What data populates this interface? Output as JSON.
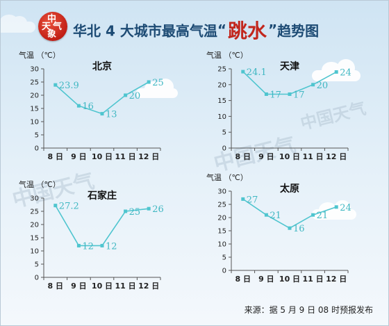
{
  "title": {
    "main": "华北 4 大城市最高气温",
    "quote_open": "“",
    "highlight": "跳水",
    "quote_close": "”",
    "suffix": "趋势图"
  },
  "logo": {
    "chars": [
      "中",
      "天",
      "气",
      "象"
    ],
    "color": "#c2271d"
  },
  "watermark": "中国天气",
  "source": "来源：据 5 月 9 日 08 时预报发布",
  "colors": {
    "line": "#4fc5cf",
    "title": "#1d4b74",
    "highlight": "#c2271d",
    "label": "#3fb7c2"
  },
  "chart_data": [
    {
      "type": "line",
      "title": "北京",
      "ylabel": "气温 （℃）",
      "categories": [
        "8 日",
        "9 日",
        "10 日",
        "11 日",
        "12 日"
      ],
      "values": [
        23.9,
        16,
        13,
        20,
        25
      ],
      "value_labels": [
        "23.9",
        "16",
        "13",
        "20",
        "25"
      ],
      "ylim": [
        0,
        30
      ],
      "yticks": [
        0,
        5,
        10,
        15,
        20,
        25,
        30
      ]
    },
    {
      "type": "line",
      "title": "天津",
      "ylabel": "气温 （℃）",
      "categories": [
        "8 日",
        "9 日",
        "10 日",
        "11 日",
        "12 日"
      ],
      "values": [
        24.1,
        17,
        17,
        20,
        24
      ],
      "value_labels": [
        "24.1",
        "17",
        "17",
        "20",
        "24"
      ],
      "ylim": [
        0,
        25
      ],
      "yticks": [
        0,
        5,
        10,
        15,
        20,
        25
      ]
    },
    {
      "type": "line",
      "title": "石家庄",
      "ylabel": "气温 （℃）",
      "categories": [
        "8 日",
        "9 日",
        "10 日",
        "11 日",
        "12 日"
      ],
      "values": [
        27.2,
        12,
        12,
        25,
        26
      ],
      "value_labels": [
        "27.2",
        "12",
        "12",
        "25",
        "26"
      ],
      "ylim": [
        0,
        30
      ],
      "yticks": [
        0,
        5,
        10,
        15,
        20,
        25,
        30
      ]
    },
    {
      "type": "line",
      "title": "太原",
      "ylabel": "气温 （℃）",
      "categories": [
        "8 日",
        "9 日",
        "10 日",
        "11 日",
        "12 日"
      ],
      "values": [
        27,
        21,
        16,
        21,
        24
      ],
      "value_labels": [
        "27",
        "21",
        "16",
        "21",
        "24"
      ],
      "ylim": [
        0,
        30
      ],
      "yticks": [
        0,
        5,
        10,
        15,
        20,
        25,
        30
      ]
    }
  ]
}
